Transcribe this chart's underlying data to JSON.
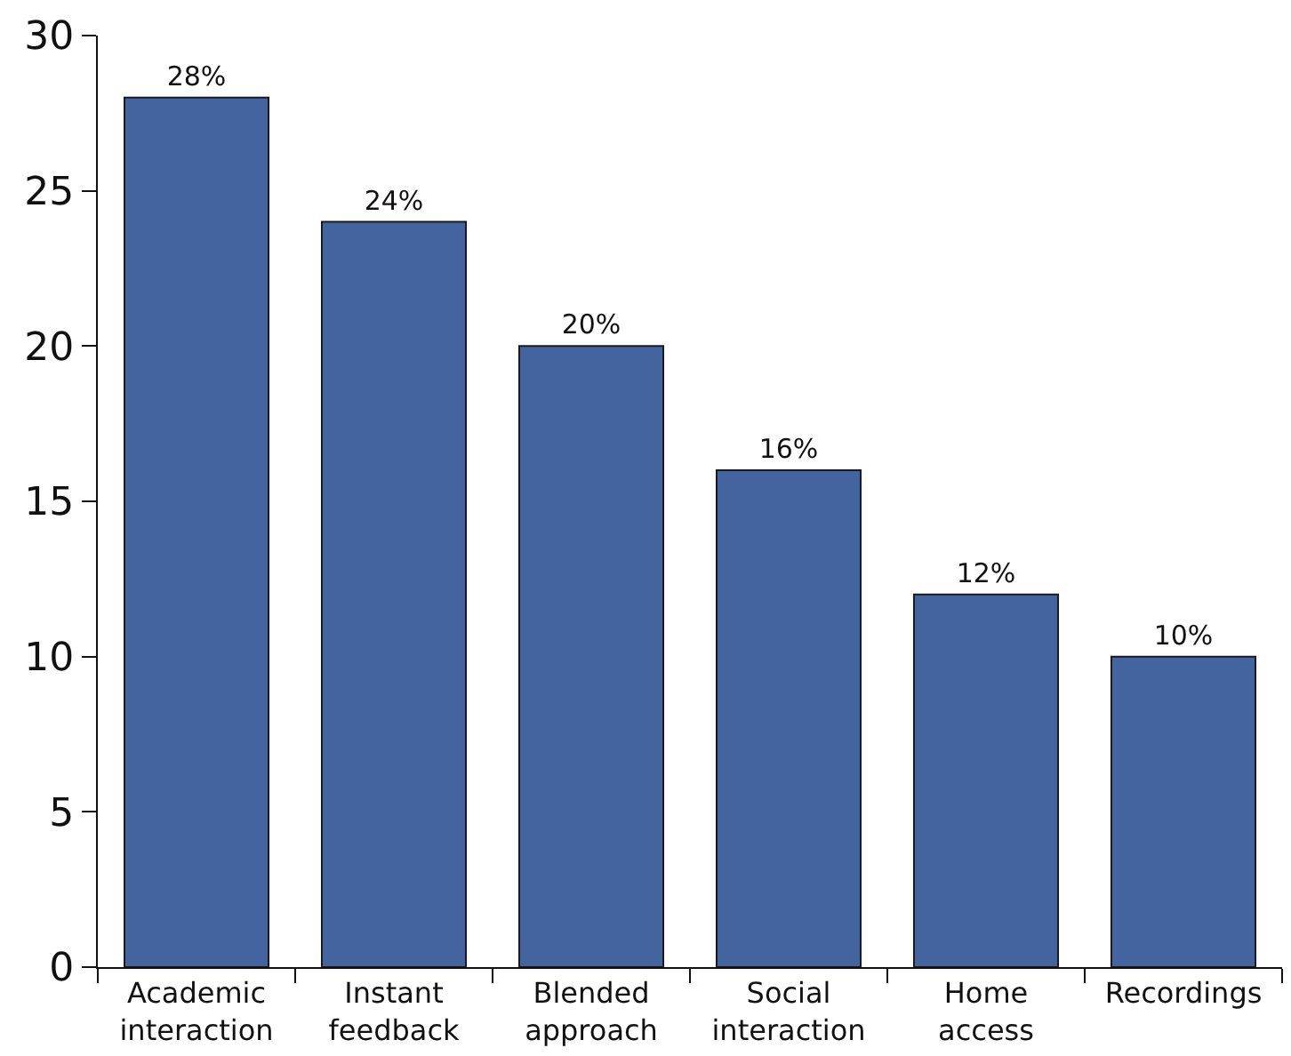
{
  "chart_data": {
    "type": "bar",
    "categories": [
      "Academic interaction",
      "Instant feedback",
      "Blended approach",
      "Social interaction",
      "Home access",
      "Recordings"
    ],
    "values": [
      28,
      24,
      20,
      16,
      12,
      10
    ],
    "value_labels": [
      "28%",
      "24%",
      "20%",
      "16%",
      "12%",
      "10%"
    ],
    "color": "#4464a0",
    "ylim": [
      0,
      30
    ],
    "yticks": [
      0,
      5,
      10,
      15,
      20,
      25,
      30
    ]
  }
}
